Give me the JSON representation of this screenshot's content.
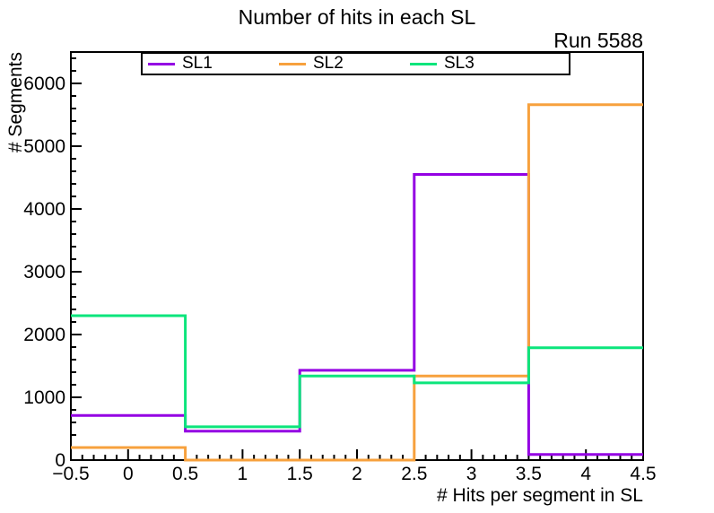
{
  "chart_data": {
    "type": "step-histogram",
    "title": "Number of hits in each SL",
    "annotation": "Run 5588",
    "xlabel": "# Hits per segment in SL",
    "ylabel": "# Segments",
    "xlim": [
      -0.5,
      4.5
    ],
    "ylim": [
      0,
      6500
    ],
    "grid": false,
    "legend_position": "top-inside",
    "bin_edges": [
      -0.5,
      0.5,
      1.5,
      2.5,
      3.5,
      4.5
    ],
    "bin_centers": [
      0,
      1,
      2,
      3,
      4
    ],
    "x_tick_values": [
      -0.5,
      0,
      0.5,
      1,
      1.5,
      2,
      2.5,
      3,
      3.5,
      4,
      4.5
    ],
    "x_tick_labels": [
      "−0.5",
      "0",
      "0.5",
      "1",
      "1.5",
      "2",
      "2.5",
      "3",
      "3.5",
      "4",
      "4.5"
    ],
    "x_minor_step": 0.1,
    "y_tick_values": [
      0,
      1000,
      2000,
      3000,
      4000,
      5000,
      6000
    ],
    "y_tick_labels": [
      "0",
      "1000",
      "2000",
      "3000",
      "4000",
      "5000",
      "6000"
    ],
    "y_minor_step": 200,
    "axis_color": "#000000",
    "text_color": "#000000",
    "series": [
      {
        "name": "SL1",
        "color": "#9400e3",
        "values": [
          710,
          460,
          1430,
          4550,
          90
        ]
      },
      {
        "name": "SL2",
        "color": "#f7a13d",
        "values": [
          200,
          0,
          0,
          1340,
          5660
        ]
      },
      {
        "name": "SL3",
        "color": "#0ce57c",
        "values": [
          2300,
          530,
          1340,
          1230,
          1790
        ]
      }
    ]
  }
}
